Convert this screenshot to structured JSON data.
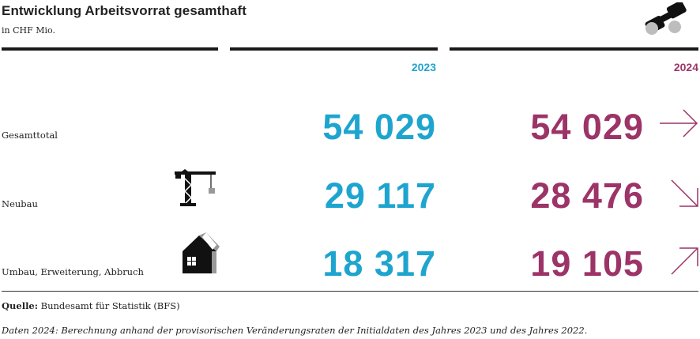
{
  "header": {
    "title": "Entwicklung Arbeitsvorrat gesamthaft",
    "subtitle": "in CHF Mio."
  },
  "columns": {
    "year_a": "2023",
    "year_b": "2024"
  },
  "rows": [
    {
      "label": "Gesamttotal",
      "value_2023": "54 029",
      "value_2024": "54 029",
      "trend": "flat",
      "icon": ""
    },
    {
      "label": "Neubau",
      "value_2023": "29 117",
      "value_2024": "28 476",
      "trend": "down",
      "icon": "crane-icon"
    },
    {
      "label": "Umbau, Erweiterung, Abbruch",
      "value_2023": "18 317",
      "value_2024": "19 105",
      "trend": "up",
      "icon": "house-renovation-icon"
    }
  ],
  "footer": {
    "source_label": "Quelle:",
    "source_text": " Bundesamt für Statistik (BFS)",
    "note": "Daten 2024: Berechnung anhand der provisorischen Veränderungsraten der Initialdaten des Jahres 2023 und des Jahres 2022."
  },
  "colors": {
    "year_2023": "#1ea5cf",
    "year_2024": "#9c3468",
    "text": "#222222"
  }
}
